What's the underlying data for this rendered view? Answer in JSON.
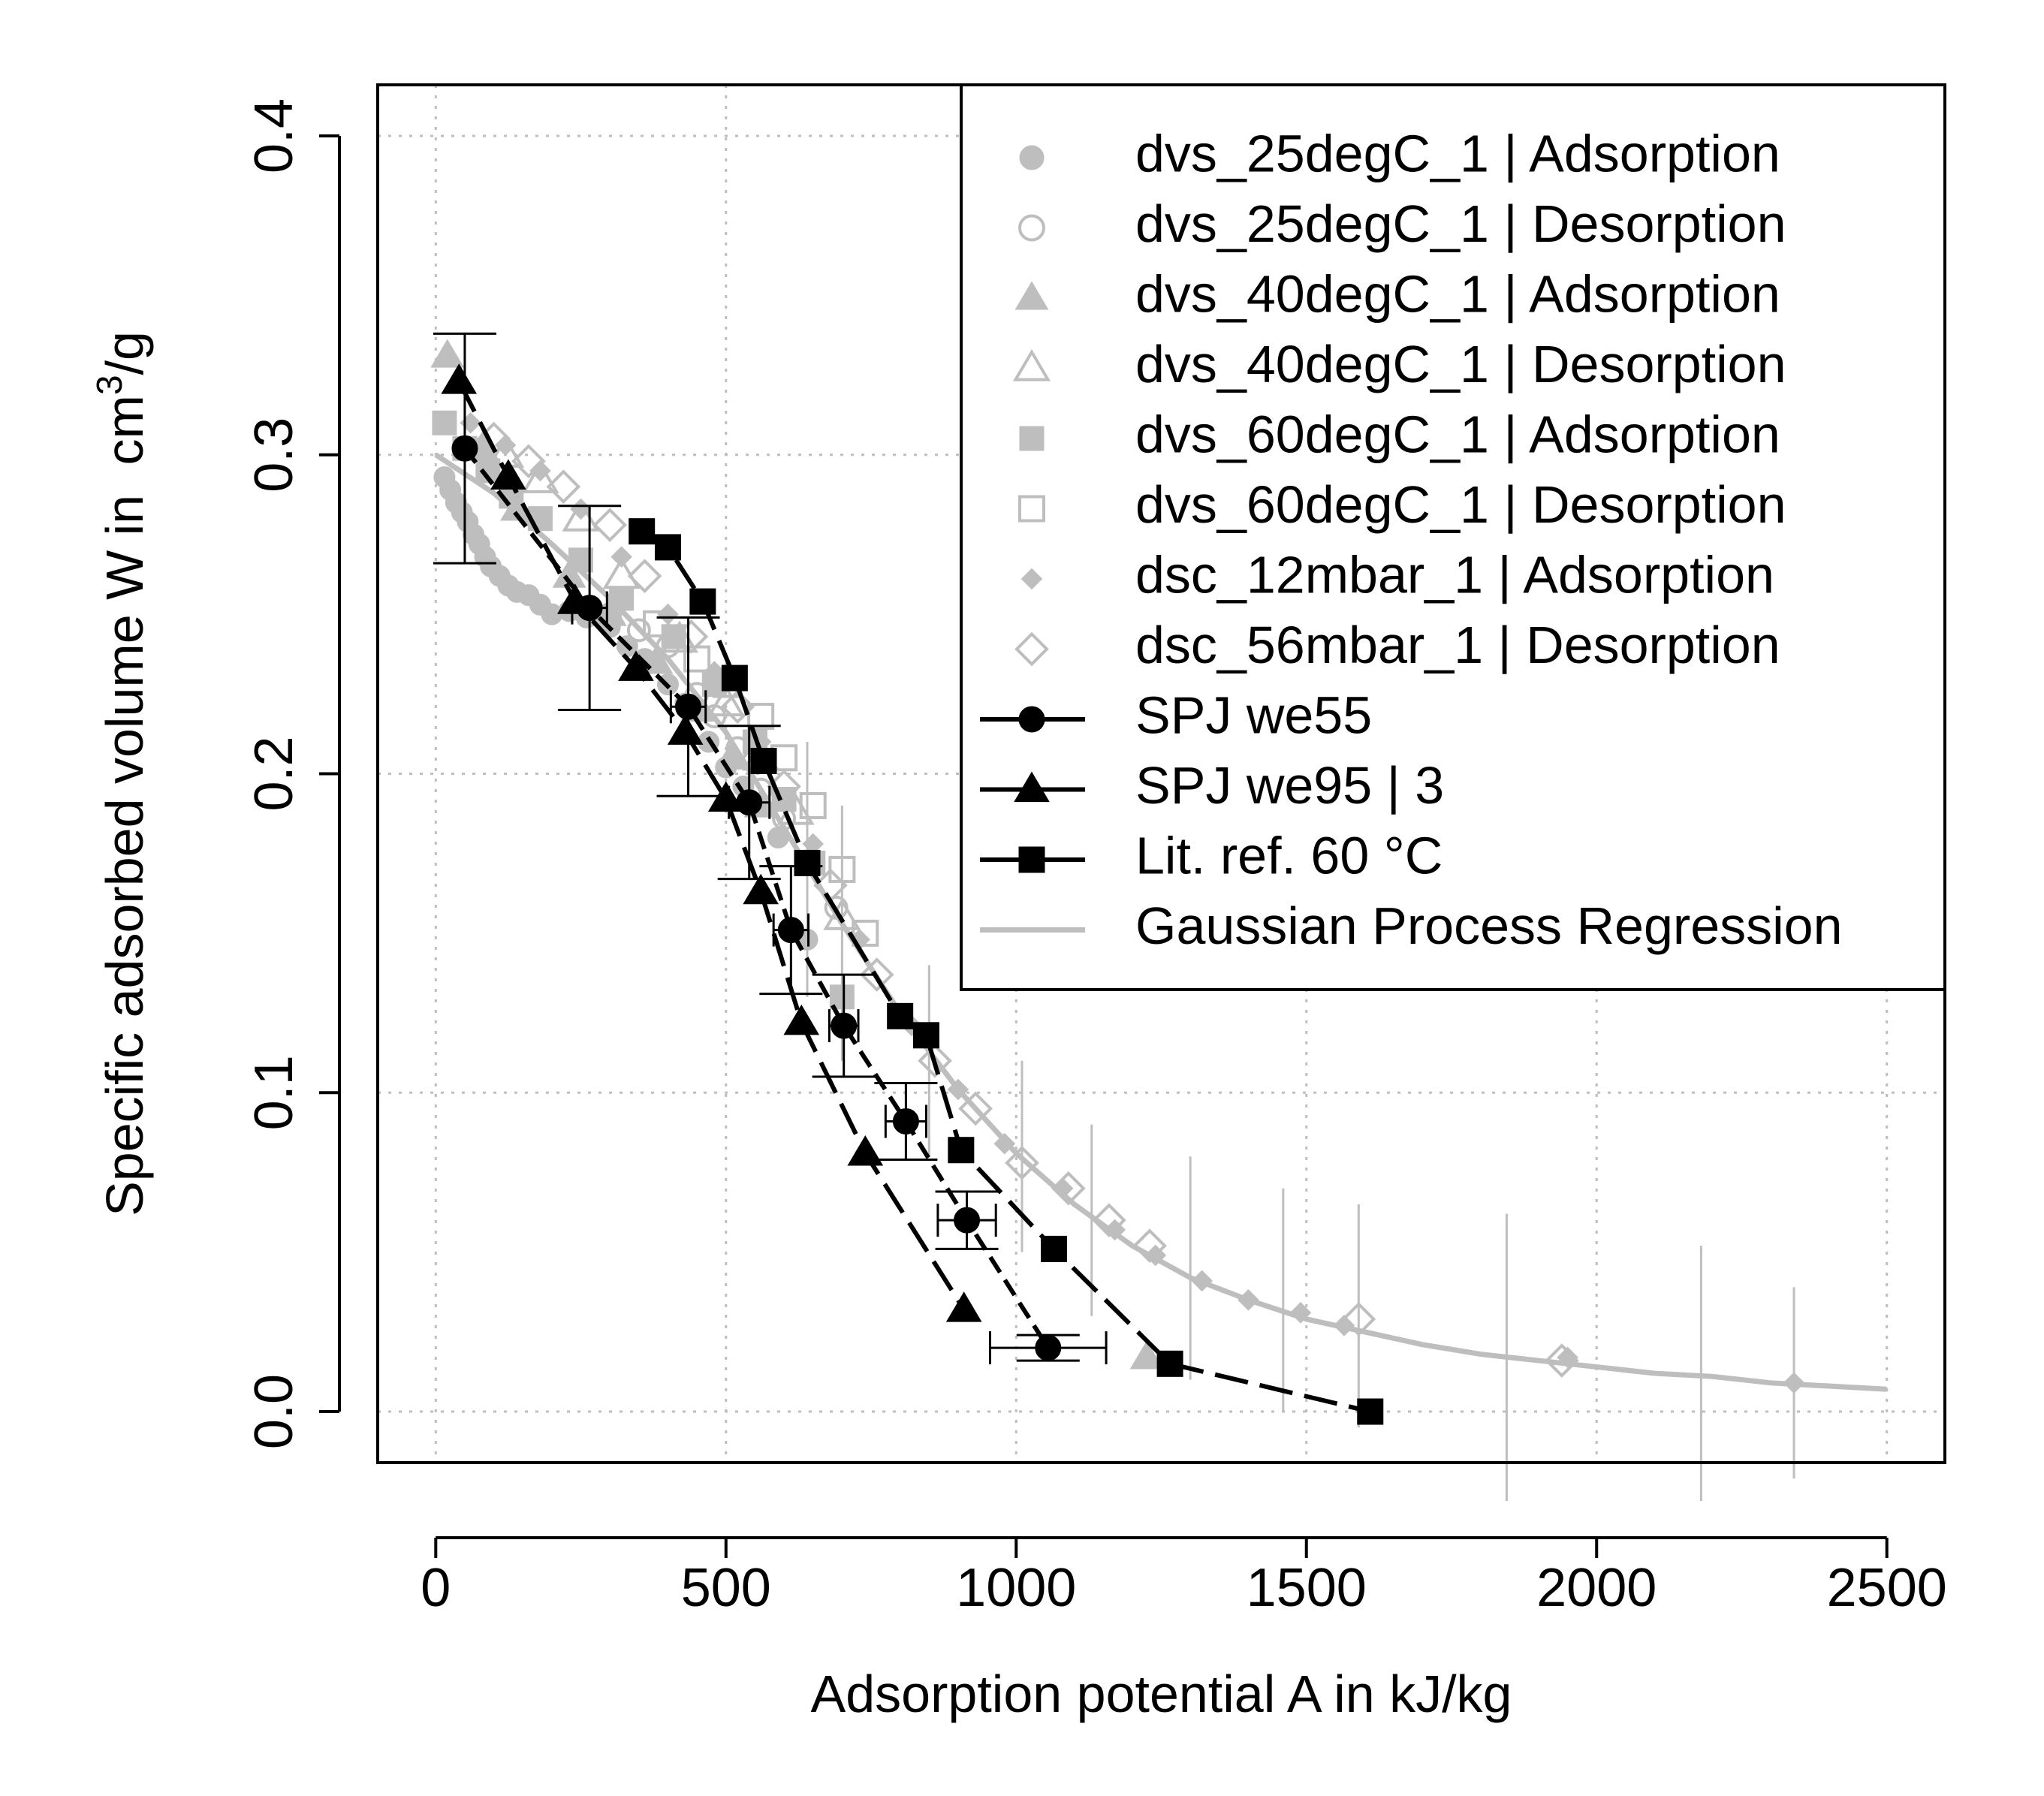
{
  "colors": {
    "gray": "#BEBEBE",
    "black": "#000000",
    "grid": "#BEBEBE"
  },
  "chart_data": {
    "type": "scatter",
    "title": "",
    "xlabel": "Adsorption potential A in kJ/kg",
    "ylabel_prefix": "Specific adsorbed volume W in",
    "ylabel_unit": "cm",
    "ylabel_sup": "3",
    "ylabel_suffix": "/g",
    "xlim": [
      -100,
      2600
    ],
    "ylim": [
      -0.016,
      0.416
    ],
    "xticks": [
      0,
      500,
      1000,
      1500,
      2000,
      2500
    ],
    "xtick_labels": [
      "0",
      "500",
      "1000",
      "1500",
      "2000",
      "2500"
    ],
    "yticks": [
      0.0,
      0.1,
      0.2,
      0.3,
      0.4
    ],
    "ytick_labels": [
      "0.0",
      "0.1",
      "0.2",
      "0.3",
      "0.4"
    ],
    "grid": true,
    "legend_position": "top-right",
    "series": [
      {
        "name": "dvs_25degC_1 | Adsorption",
        "marker": "circle-filled",
        "color": "gray",
        "small": true,
        "points": [
          [
            15,
            0.293
          ],
          [
            25,
            0.289
          ],
          [
            35,
            0.285
          ],
          [
            45,
            0.282
          ],
          [
            55,
            0.279
          ],
          [
            65,
            0.275
          ],
          [
            75,
            0.272
          ],
          [
            85,
            0.268
          ],
          [
            95,
            0.265
          ],
          [
            110,
            0.262
          ],
          [
            125,
            0.259
          ],
          [
            140,
            0.257
          ],
          [
            160,
            0.256
          ],
          [
            180,
            0.253
          ],
          [
            200,
            0.25
          ],
          [
            230,
            0.251
          ],
          [
            260,
            0.249
          ],
          [
            300,
            0.246
          ],
          [
            330,
            0.24
          ],
          [
            360,
            0.236
          ],
          [
            400,
            0.228
          ],
          [
            430,
            0.222
          ],
          [
            470,
            0.21
          ],
          [
            500,
            0.202
          ],
          [
            530,
            0.196
          ],
          [
            560,
            0.19
          ],
          [
            590,
            0.18
          ],
          [
            640,
            0.148
          ]
        ]
      },
      {
        "name": "dvs_25degC_1 | Desorption",
        "marker": "circle-open",
        "color": "gray",
        "small": true,
        "points": [
          [
            300,
            0.25
          ],
          [
            350,
            0.245
          ],
          [
            400,
            0.24
          ],
          [
            450,
            0.225
          ],
          [
            480,
            0.218
          ],
          [
            520,
            0.208
          ],
          [
            560,
            0.195
          ],
          [
            600,
            0.186
          ],
          [
            640,
            0.172
          ],
          [
            690,
            0.158
          ]
        ]
      },
      {
        "name": "dvs_40degC_1 | Adsorption",
        "marker": "triangle-filled",
        "color": "gray",
        "points": [
          [
            20,
            0.331
          ],
          [
            80,
            0.302
          ],
          [
            140,
            0.283
          ],
          [
            230,
            0.262
          ],
          [
            300,
            0.25
          ],
          [
            380,
            0.235
          ],
          [
            450,
            0.22
          ],
          [
            510,
            0.205
          ],
          [
            560,
            0.19
          ],
          [
            1225,
            0.017
          ]
        ]
      },
      {
        "name": "dvs_40degC_1 | Desorption",
        "marker": "triangle-open",
        "color": "gray",
        "points": [
          [
            120,
            0.3
          ],
          [
            180,
            0.292
          ],
          [
            250,
            0.28
          ],
          [
            320,
            0.262
          ],
          [
            420,
            0.242
          ],
          [
            500,
            0.222
          ],
          [
            560,
            0.205
          ],
          [
            620,
            0.188
          ],
          [
            700,
            0.155
          ]
        ]
      },
      {
        "name": "dvs_60degC_1 | Adsorption",
        "marker": "square-filled",
        "color": "gray",
        "points": [
          [
            15,
            0.31
          ],
          [
            50,
            0.302
          ],
          [
            90,
            0.295
          ],
          [
            130,
            0.287
          ],
          [
            180,
            0.28
          ],
          [
            250,
            0.267
          ],
          [
            320,
            0.255
          ],
          [
            410,
            0.243
          ],
          [
            480,
            0.228
          ],
          [
            550,
            0.21
          ],
          [
            600,
            0.192
          ],
          [
            650,
            0.172
          ],
          [
            700,
            0.13
          ]
        ]
      },
      {
        "name": "dvs_60degC_1 | Desorption",
        "marker": "square-open",
        "color": "gray",
        "points": [
          [
            380,
            0.247
          ],
          [
            450,
            0.236
          ],
          [
            500,
            0.228
          ],
          [
            560,
            0.218
          ],
          [
            600,
            0.205
          ],
          [
            650,
            0.19
          ],
          [
            700,
            0.17
          ],
          [
            740,
            0.15
          ]
        ]
      },
      {
        "name": "dsc_12mbar_1 | Adsorption",
        "marker": "diamond-filled",
        "color": "gray",
        "points": [
          [
            60,
            0.31
          ],
          [
            120,
            0.303
          ],
          [
            180,
            0.295
          ],
          [
            250,
            0.283
          ],
          [
            320,
            0.268
          ],
          [
            400,
            0.25
          ],
          [
            480,
            0.232
          ],
          [
            560,
            0.21
          ],
          [
            650,
            0.178
          ],
          [
            730,
            0.148
          ],
          [
            820,
            0.121
          ],
          [
            900,
            0.101
          ],
          [
            980,
            0.084
          ],
          [
            1080,
            0.07
          ],
          [
            1170,
            0.057
          ],
          [
            1240,
            0.049
          ],
          [
            1320,
            0.041
          ],
          [
            1400,
            0.035
          ],
          [
            1490,
            0.031
          ],
          [
            1565,
            0.027
          ],
          [
            1950,
            0.017
          ],
          [
            2340,
            0.009
          ]
        ]
      },
      {
        "name": "dsc_56mbar_1 | Desorption",
        "marker": "diamond-open",
        "color": "gray",
        "points": [
          [
            100,
            0.305
          ],
          [
            160,
            0.298
          ],
          [
            220,
            0.29
          ],
          [
            300,
            0.278
          ],
          [
            360,
            0.262
          ],
          [
            440,
            0.243
          ],
          [
            520,
            0.221
          ],
          [
            600,
            0.196
          ],
          [
            680,
            0.165
          ],
          [
            760,
            0.137
          ],
          [
            860,
            0.11
          ],
          [
            930,
            0.095
          ],
          [
            1010,
            0.078
          ],
          [
            1090,
            0.07
          ],
          [
            1160,
            0.06
          ],
          [
            1230,
            0.052
          ],
          [
            1590,
            0.029
          ],
          [
            1940,
            0.016
          ]
        ]
      },
      {
        "name": "SPJ we55",
        "marker": "circle-filled",
        "color": "black",
        "line": true,
        "dash": "24 12",
        "points": [
          [
            50,
            0.302
          ],
          [
            265,
            0.252
          ],
          [
            435,
            0.221
          ],
          [
            540,
            0.191
          ],
          [
            612,
            0.151
          ],
          [
            703,
            0.121
          ],
          [
            810,
            0.091
          ],
          [
            915,
            0.06
          ],
          [
            1055,
            0.02
          ]
        ],
        "xerr": [
          0,
          30,
          30,
          35,
          30,
          25,
          35,
          50,
          100
        ],
        "yerr": [
          0.036,
          0.032,
          0.028,
          0.024,
          0.02,
          0.016,
          0.012,
          0.009,
          0.004
        ]
      },
      {
        "name": "SPJ we95 | 3",
        "marker": "triangle-filled",
        "color": "black",
        "line": true,
        "dash": "45 16",
        "points": [
          [
            40,
            0.323
          ],
          [
            125,
            0.293
          ],
          [
            240,
            0.254
          ],
          [
            345,
            0.233
          ],
          [
            430,
            0.213
          ],
          [
            500,
            0.192
          ],
          [
            560,
            0.163
          ],
          [
            630,
            0.122
          ],
          [
            740,
            0.081
          ],
          [
            910,
            0.032
          ]
        ]
      },
      {
        "name": "Lit. ref. 60 °C",
        "marker": "square-filled",
        "color": "black",
        "line": true,
        "dash": "45 16",
        "points": [
          [
            355,
            0.276
          ],
          [
            400,
            0.271
          ],
          [
            460,
            0.254
          ],
          [
            515,
            0.23
          ],
          [
            565,
            0.204
          ],
          [
            640,
            0.172
          ],
          [
            800,
            0.124
          ],
          [
            845,
            0.118
          ],
          [
            905,
            0.082
          ],
          [
            1065,
            0.051
          ],
          [
            1265,
            0.015
          ],
          [
            1610,
            0.0
          ]
        ]
      },
      {
        "name": "Gaussian Process Regression",
        "marker": "none",
        "color": "gray",
        "line": true,
        "dash": "",
        "points": [
          [
            0,
            0.3
          ],
          [
            100,
            0.288
          ],
          [
            200,
            0.272
          ],
          [
            300,
            0.255
          ],
          [
            400,
            0.236
          ],
          [
            500,
            0.213
          ],
          [
            600,
            0.183
          ],
          [
            700,
            0.153
          ],
          [
            800,
            0.125
          ],
          [
            900,
            0.101
          ],
          [
            1000,
            0.081
          ],
          [
            1100,
            0.065
          ],
          [
            1200,
            0.052
          ],
          [
            1300,
            0.042
          ],
          [
            1400,
            0.035
          ],
          [
            1500,
            0.029
          ],
          [
            1600,
            0.025
          ],
          [
            1700,
            0.021
          ],
          [
            1800,
            0.018
          ],
          [
            1900,
            0.016
          ],
          [
            2000,
            0.014
          ],
          [
            2100,
            0.012
          ],
          [
            2200,
            0.011
          ],
          [
            2300,
            0.009
          ],
          [
            2400,
            0.008
          ],
          [
            2500,
            0.007
          ]
        ]
      }
    ]
  }
}
